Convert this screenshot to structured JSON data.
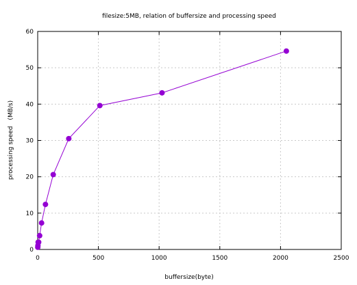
{
  "chart_data": {
    "type": "line",
    "title": "filesize:5MB, relation of buffersize and processing speed",
    "xlabel": "buffersize(byte)",
    "ylabel": "processing speed　(MB/s)",
    "xlim": [
      0,
      2500
    ],
    "ylim": [
      0,
      60
    ],
    "x_ticks": [
      0,
      500,
      1000,
      1500,
      2000,
      2500
    ],
    "y_ticks": [
      0,
      10,
      20,
      30,
      40,
      50,
      60
    ],
    "grid": true,
    "legend": "none",
    "series": [
      {
        "color": "#9400d3",
        "marker": "circle",
        "points": [
          {
            "x": 1,
            "y": 0.6
          },
          {
            "x": 2,
            "y": 1.1
          },
          {
            "x": 4,
            "y": 2.0
          },
          {
            "x": 8,
            "y": 2.0
          },
          {
            "x": 16,
            "y": 3.8
          },
          {
            "x": 32,
            "y": 7.3
          },
          {
            "x": 64,
            "y": 12.4
          },
          {
            "x": 128,
            "y": 20.6
          },
          {
            "x": 256,
            "y": 30.5
          },
          {
            "x": 512,
            "y": 39.6
          },
          {
            "x": 1024,
            "y": 43.1
          },
          {
            "x": 2048,
            "y": 54.6
          }
        ]
      }
    ]
  }
}
